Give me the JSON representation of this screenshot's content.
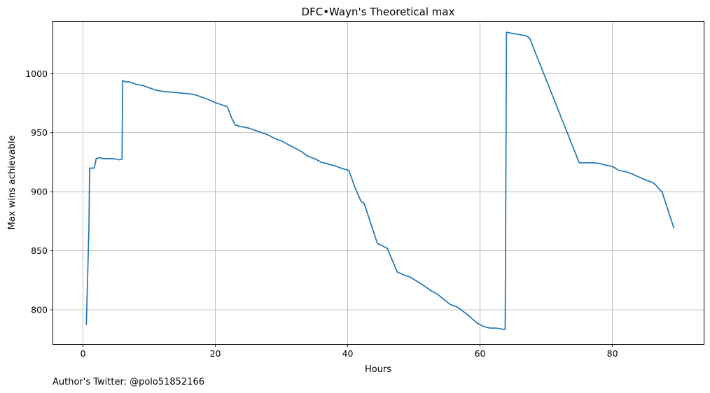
{
  "chart_data": {
    "type": "line",
    "title": "DFC•Wayn's Theoretical max",
    "xlabel": "Hours",
    "ylabel": "Max wins achievable",
    "xlim": [
      -4.5,
      93.8
    ],
    "ylim": [
      771,
      1044
    ],
    "xticks": [
      0,
      20,
      40,
      60,
      80
    ],
    "yticks": [
      800,
      850,
      900,
      950,
      1000
    ],
    "grid": true,
    "series": [
      {
        "color": "#1f77b4",
        "x": [
          0.5,
          0.9,
          1.0,
          1.5,
          1.7,
          2.0,
          2.5,
          3.0,
          3.5,
          4.0,
          4.5,
          5.0,
          5.5,
          5.9,
          6.0,
          6.5,
          7.0,
          7.5,
          8.0,
          9.0,
          10.0,
          11.0,
          12.0,
          13.0,
          14.0,
          15.0,
          16.0,
          17.0,
          18.0,
          19.0,
          20.0,
          21.0,
          21.8,
          22.5,
          23.0,
          24.0,
          25.0,
          26.0,
          27.0,
          28.0,
          29.0,
          30.0,
          31.0,
          32.0,
          33.0,
          34.0,
          35.0,
          36.0,
          37.0,
          38.0,
          39.0,
          40.2,
          41.0,
          42.0,
          42.5,
          43.5,
          44.5,
          45.0,
          46.0,
          46.5,
          47.5,
          48.5,
          49.5,
          50.5,
          51.5,
          52.5,
          53.5,
          54.5,
          55.5,
          56.5,
          57.5,
          58.5,
          59.5,
          60.5,
          61.5,
          62.5,
          63.5,
          63.8,
          64.0,
          65.0,
          66.0,
          67.0,
          67.5,
          75.0,
          76.0,
          77.0,
          78.0,
          79.0,
          80.0,
          81.0,
          82.0,
          83.0,
          84.0,
          85.0,
          86.0,
          86.5,
          87.0,
          87.5,
          89.3
        ],
        "y": [
          787,
          869,
          920,
          920,
          920,
          928,
          929,
          928,
          928,
          928,
          928,
          927.5,
          927,
          927.5,
          994,
          993,
          993,
          992,
          991,
          990,
          988,
          986,
          985,
          984.5,
          984,
          983.5,
          983,
          982,
          980,
          978,
          975.5,
          973.5,
          972,
          962,
          956.5,
          955,
          954,
          952,
          950,
          948,
          945,
          943,
          940,
          937,
          934,
          930,
          928,
          925,
          923.5,
          922,
          920,
          918,
          905,
          892,
          890,
          873,
          856,
          855,
          852,
          845,
          832,
          829.5,
          827.5,
          824,
          820.5,
          816.5,
          813.5,
          809,
          804.5,
          802.5,
          798.5,
          794,
          789,
          786,
          784.5,
          784.5,
          783.5,
          783.5,
          1035,
          1034,
          1033,
          1032,
          1030,
          924.5,
          924.5,
          924.5,
          924,
          922.5,
          921.5,
          918,
          917,
          915,
          912.5,
          910,
          908,
          906,
          902.5,
          900,
          869
        ]
      }
    ]
  },
  "footer": {
    "twitter": "Author's Twitter: @polo51852166"
  }
}
